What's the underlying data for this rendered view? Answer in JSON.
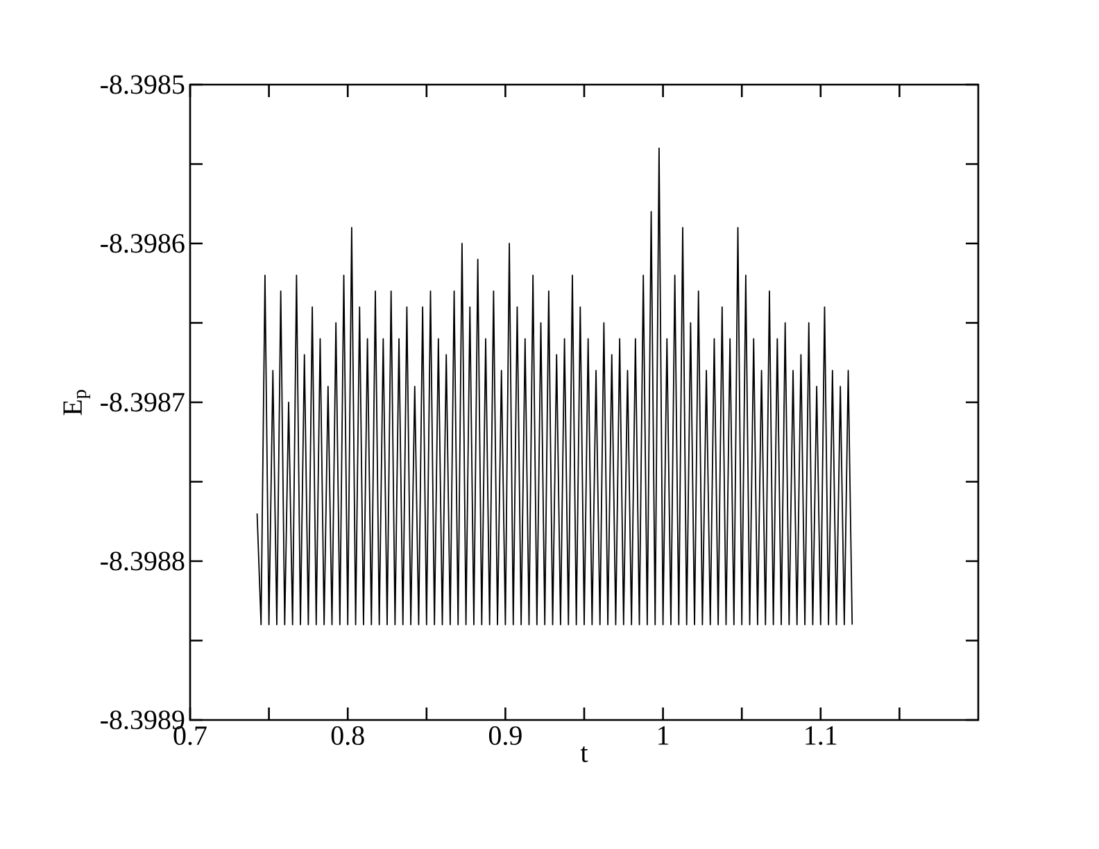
{
  "chart_data": {
    "type": "line",
    "xlabel": "t",
    "ylabel": "E$_{p}$",
    "color": "#000000",
    "xlim": [
      0.7,
      1.2
    ],
    "ylim": [
      -8.3989,
      -8.3985
    ],
    "xticks": [
      0.7,
      {
        "value": 0.75,
        "label": null
      },
      0.8,
      {
        "value": 0.85,
        "label": null
      },
      0.9,
      {
        "value": 0.95,
        "label": null
      },
      1,
      {
        "value": 1.05,
        "label": null
      },
      1.1,
      {
        "value": 1.15,
        "label": null
      }
    ],
    "yticks": [
      -8.3989,
      {
        "value": -8.39885,
        "label": null
      },
      -8.3988,
      {
        "value": -8.39875,
        "label": null
      },
      -8.3987,
      {
        "value": -8.39865,
        "label": null
      },
      -8.3986,
      {
        "value": -8.39855,
        "label": null
      },
      -8.3985
    ],
    "x": [
      0.7425,
      0.745,
      0.7475,
      0.75,
      0.7525,
      0.755,
      0.7575,
      0.76,
      0.7625,
      0.765,
      0.7675,
      0.77,
      0.7725,
      0.775,
      0.7775,
      0.78,
      0.7825,
      0.785,
      0.7875,
      0.79,
      0.7925,
      0.795,
      0.7975,
      0.8,
      0.8025,
      0.805,
      0.8075,
      0.81,
      0.8125,
      0.815,
      0.8175,
      0.82,
      0.8225,
      0.825,
      0.8275,
      0.83,
      0.8325,
      0.835,
      0.8375,
      0.84,
      0.8425,
      0.845,
      0.8475,
      0.85,
      0.8525,
      0.855,
      0.8575,
      0.86,
      0.8625,
      0.865,
      0.8675,
      0.87,
      0.8725,
      0.875,
      0.8775,
      0.88,
      0.8825,
      0.885,
      0.8875,
      0.89,
      0.8925,
      0.895,
      0.8975,
      0.9,
      0.9025,
      0.905,
      0.9075,
      0.91,
      0.9125,
      0.915,
      0.9175,
      0.92,
      0.9225,
      0.925,
      0.9275,
      0.93,
      0.9325,
      0.935,
      0.9375,
      0.94,
      0.9425,
      0.945,
      0.9475,
      0.95,
      0.9525,
      0.955,
      0.9575,
      0.96,
      0.9625,
      0.965,
      0.9675,
      0.97,
      0.9725,
      0.975,
      0.9775,
      0.98,
      0.9825,
      0.985,
      0.9875,
      0.99,
      0.9925,
      0.995,
      0.9975,
      1.0,
      1.0025,
      1.005,
      1.0075,
      1.01,
      1.0125,
      1.015,
      1.0175,
      1.02,
      1.0225,
      1.025,
      1.0275,
      1.03,
      1.0325,
      1.035,
      1.0375,
      1.04,
      1.0425,
      1.045,
      1.0475,
      1.05,
      1.0525,
      1.055,
      1.0575,
      1.06,
      1.0625,
      1.065,
      1.0675,
      1.07,
      1.0725,
      1.075,
      1.0775,
      1.08,
      1.0825,
      1.085,
      1.0875,
      1.09,
      1.0925,
      1.095,
      1.0975,
      1.1,
      1.1025,
      1.105,
      1.1075,
      1.11,
      1.1125,
      1.115,
      1.1175,
      1.12
    ],
    "values": [
      -8.39877,
      -8.39884,
      -8.39862,
      -8.39884,
      -8.39868,
      -8.39884,
      -8.39863,
      -8.39884,
      -8.3987,
      -8.39884,
      -8.39862,
      -8.39884,
      -8.39867,
      -8.39884,
      -8.39864,
      -8.39884,
      -8.39866,
      -8.39884,
      -8.39869,
      -8.39884,
      -8.39865,
      -8.39884,
      -8.39862,
      -8.39884,
      -8.39859,
      -8.39884,
      -8.39864,
      -8.39884,
      -8.39866,
      -8.39884,
      -8.39863,
      -8.39884,
      -8.39866,
      -8.39884,
      -8.39863,
      -8.39884,
      -8.39866,
      -8.39884,
      -8.39864,
      -8.39884,
      -8.39869,
      -8.39884,
      -8.39864,
      -8.39884,
      -8.39863,
      -8.39884,
      -8.39866,
      -8.39884,
      -8.39867,
      -8.39884,
      -8.39863,
      -8.39884,
      -8.3986,
      -8.39884,
      -8.39864,
      -8.39884,
      -8.39861,
      -8.39884,
      -8.39866,
      -8.39884,
      -8.39863,
      -8.39884,
      -8.39868,
      -8.39884,
      -8.3986,
      -8.39884,
      -8.39864,
      -8.39884,
      -8.39866,
      -8.39884,
      -8.39862,
      -8.39884,
      -8.39865,
      -8.39884,
      -8.39863,
      -8.39884,
      -8.39867,
      -8.39884,
      -8.39866,
      -8.39884,
      -8.39862,
      -8.39884,
      -8.39864,
      -8.39884,
      -8.39866,
      -8.39884,
      -8.39868,
      -8.39884,
      -8.39865,
      -8.39884,
      -8.39867,
      -8.39884,
      -8.39866,
      -8.39884,
      -8.39868,
      -8.39884,
      -8.39866,
      -8.39884,
      -8.39862,
      -8.39884,
      -8.39858,
      -8.39884,
      -8.39854,
      -8.39884,
      -8.39866,
      -8.39884,
      -8.39862,
      -8.39884,
      -8.39859,
      -8.39884,
      -8.39865,
      -8.39884,
      -8.39863,
      -8.39884,
      -8.39868,
      -8.39884,
      -8.39866,
      -8.39884,
      -8.39864,
      -8.39884,
      -8.39866,
      -8.39884,
      -8.39859,
      -8.39884,
      -8.39862,
      -8.39884,
      -8.39866,
      -8.39884,
      -8.39868,
      -8.39884,
      -8.39863,
      -8.39884,
      -8.39866,
      -8.39884,
      -8.39865,
      -8.39884,
      -8.39868,
      -8.39884,
      -8.39867,
      -8.39884,
      -8.39865,
      -8.39884,
      -8.39869,
      -8.39884,
      -8.39864,
      -8.39884,
      -8.39868,
      -8.39884,
      -8.39869,
      -8.39884,
      -8.39868,
      -8.39884
    ]
  }
}
